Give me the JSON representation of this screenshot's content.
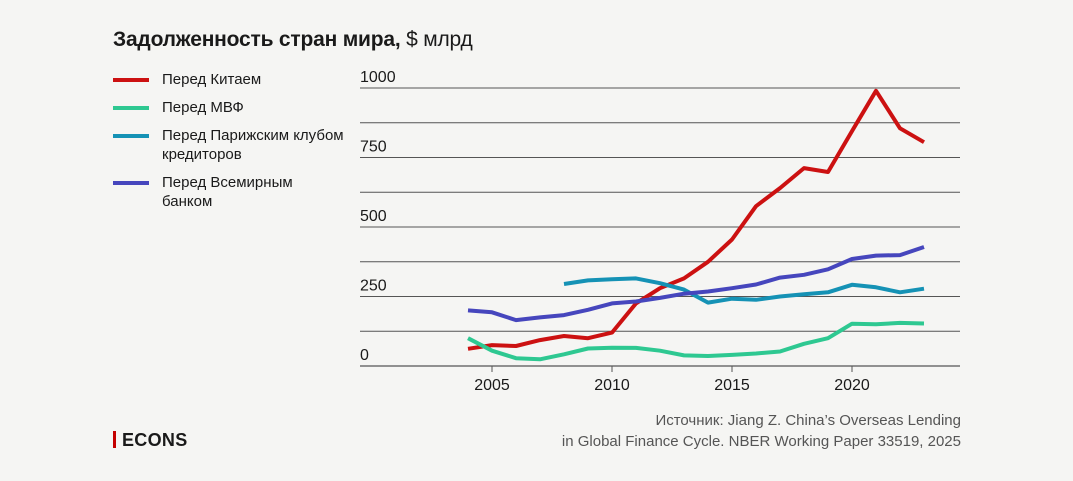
{
  "title": {
    "bold": "Задолженность стран мира,",
    "unit": " $ млрд"
  },
  "source_lines": [
    "Источник: Jiang Z. China’s Overseas Lending",
    "in Global Finance Cycle. NBER Working Paper 33519, 2025"
  ],
  "logo": "ECONS",
  "colors": {
    "china": "#cc1111",
    "imf": "#2ec891",
    "paris": "#1592b5",
    "wb": "#4646bd",
    "grid": "#555555",
    "accent": "#c40000"
  },
  "chart_data": {
    "type": "line",
    "xlim": [
      1999.5,
      2024.5
    ],
    "ylim": [
      0,
      1000
    ],
    "x_ticks": [
      2005,
      2010,
      2015,
      2020
    ],
    "y_ticks": [
      0,
      250,
      500,
      750,
      1000
    ],
    "grid": true,
    "legend_position": "top-left",
    "series": [
      {
        "name": "Перед Китаем",
        "color": "#cc1111",
        "x": [
          2004,
          2005,
          2006,
          2007,
          2008,
          2009,
          2010,
          2011,
          2012,
          2013,
          2014,
          2015,
          2016,
          2017,
          2018,
          2019,
          2020,
          2021,
          2022,
          2023
        ],
        "y": [
          62,
          75,
          72,
          93,
          108,
          100,
          120,
          225,
          280,
          315,
          375,
          455,
          575,
          640,
          712,
          698,
          845,
          990,
          855,
          805
        ]
      },
      {
        "name": "Перед МВФ",
        "color": "#2ec891",
        "x": [
          2004,
          2005,
          2006,
          2007,
          2008,
          2009,
          2010,
          2011,
          2012,
          2013,
          2014,
          2015,
          2016,
          2017,
          2018,
          2019,
          2020,
          2021,
          2022,
          2023
        ],
        "y": [
          100,
          55,
          28,
          24,
          42,
          63,
          66,
          65,
          55,
          38,
          36,
          40,
          45,
          52,
          80,
          100,
          152,
          150,
          155,
          153
        ]
      },
      {
        "name": "Перед Парижским клубом кредиторов",
        "color": "#1592b5",
        "x": [
          2008,
          2009,
          2010,
          2011,
          2012,
          2013,
          2014,
          2015,
          2016,
          2017,
          2018,
          2019,
          2020,
          2021,
          2022,
          2023
        ],
        "y": [
          295,
          308,
          312,
          315,
          298,
          275,
          228,
          242,
          238,
          250,
          258,
          265,
          292,
          283,
          265,
          278
        ]
      },
      {
        "name": "Перед Всемирным банком",
        "color": "#4646bd",
        "x": [
          2004,
          2005,
          2006,
          2007,
          2008,
          2009,
          2010,
          2011,
          2012,
          2013,
          2014,
          2015,
          2016,
          2017,
          2018,
          2019,
          2020,
          2021,
          2022,
          2023
        ],
        "y": [
          200,
          193,
          165,
          175,
          183,
          202,
          225,
          232,
          245,
          260,
          268,
          280,
          293,
          318,
          328,
          348,
          385,
          397,
          399,
          428
        ]
      }
    ]
  }
}
